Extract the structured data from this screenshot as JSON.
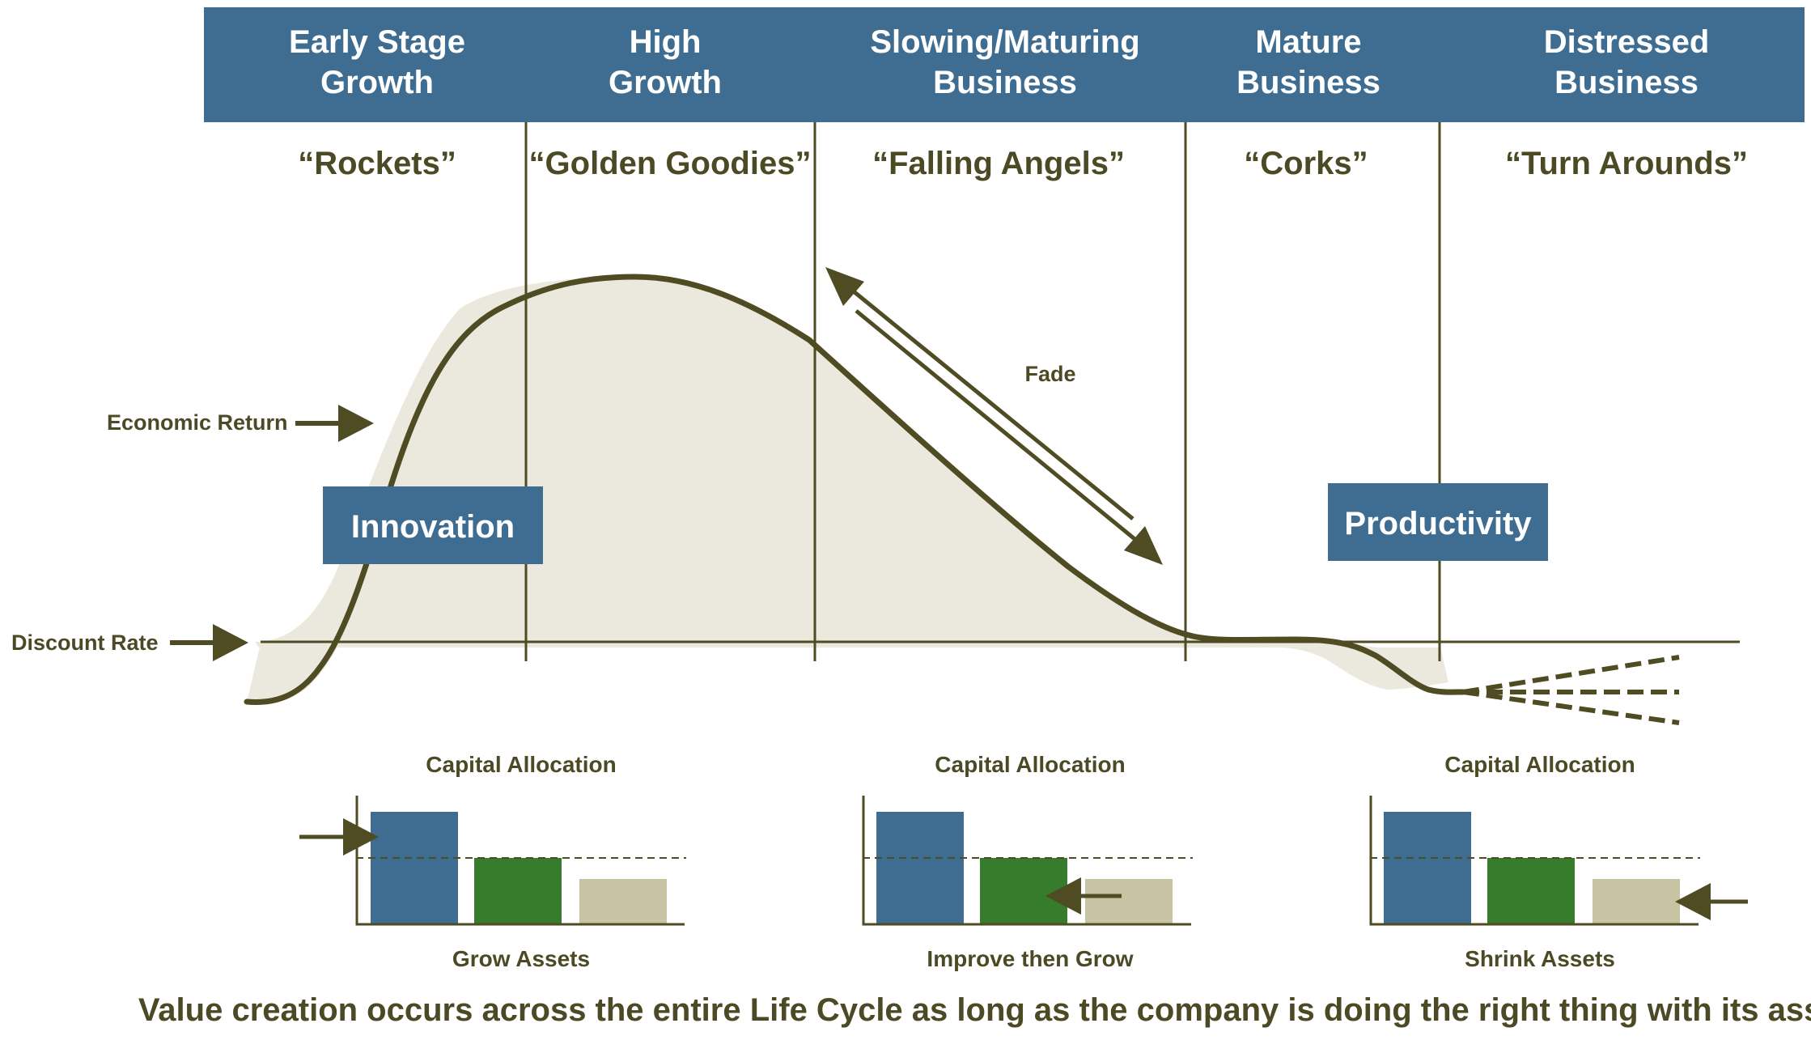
{
  "stages": [
    {
      "line1": "Early Stage",
      "line2": "Growth",
      "nickname": "“Rockets”"
    },
    {
      "line1": "High",
      "line2": "Growth",
      "nickname": "“Golden Goodies”"
    },
    {
      "line1": "Slowing/Maturing",
      "line2": "Business",
      "nickname": "“Falling Angels”"
    },
    {
      "line1": "Mature",
      "line2": "Business",
      "nickname": "“Corks”"
    },
    {
      "line1": "Distressed",
      "line2": "Business",
      "nickname": "“Turn Arounds”"
    }
  ],
  "labels": {
    "economic_return": "Economic Return",
    "discount_rate": "Discount Rate",
    "fade": "Fade",
    "innovation": "Innovation",
    "productivity": "Productivity"
  },
  "capital_allocation": [
    {
      "title": "Capital Allocation",
      "caption": "Grow Assets",
      "arrow": "pointing at first bar from left"
    },
    {
      "title": "Capital Allocation",
      "caption": "Improve then Grow",
      "arrow": "pointing left at second bar"
    },
    {
      "title": "Capital Allocation",
      "caption": "Shrink Assets",
      "arrow": "pointing left at third bar"
    }
  ],
  "footer": "Value creation occurs across the entire Life Cycle as long as the company is doing the right thing with its assets",
  "colors": {
    "header_bg": "#3e6d91",
    "olive": "#4f4b22",
    "text_olive": "#4b4a25",
    "curve_fill": "#ebe8dd",
    "bar_blue": "#3e6d91",
    "bar_green": "#377b2d",
    "bar_tan": "#c8c3a2"
  }
}
